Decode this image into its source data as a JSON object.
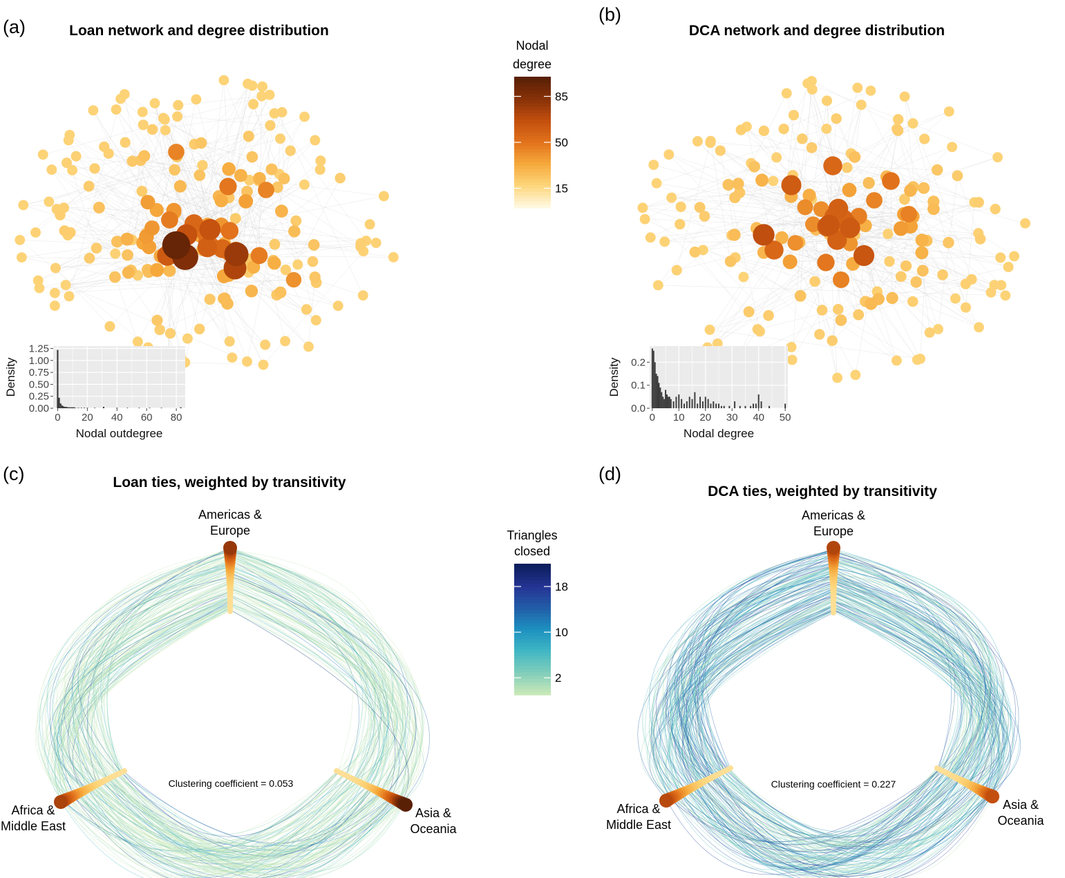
{
  "panels": {
    "a": {
      "label": "(a)",
      "title": "Loan network and degree distribution"
    },
    "b": {
      "label": "(b)",
      "title": "DCA network and degree distribution"
    },
    "c": {
      "label": "(c)",
      "title": "Loan ties, weighted by transitivity",
      "clustering": "Clustering coefficient = 0.053"
    },
    "d": {
      "label": "(d)",
      "title": "DCA ties, weighted by transitivity",
      "clustering": "Clustering coefficient = 0.227"
    }
  },
  "regions": {
    "top": [
      "Americas &",
      "Europe"
    ],
    "left": [
      "Africa &",
      "Middle East"
    ],
    "right": [
      "Asia &",
      "Oceania"
    ]
  },
  "legend_degree": {
    "title": [
      "Nodal",
      "degree"
    ],
    "ticks": [
      "85",
      "50",
      "15"
    ],
    "tick_values": [
      85,
      50,
      15
    ],
    "range": [
      0,
      100
    ],
    "colors": [
      "#fff8e0",
      "#fdd57a",
      "#f6a93c",
      "#e2731c",
      "#c4500e",
      "#8a3209",
      "#5a2005"
    ]
  },
  "legend_triangles": {
    "title": [
      "Triangles",
      "closed"
    ],
    "ticks": [
      "18",
      "10",
      "2"
    ],
    "tick_values": [
      18,
      10,
      2
    ],
    "range": [
      -1,
      22
    ],
    "colors": [
      "#c8e8b8",
      "#7fcdbb",
      "#41b6c4",
      "#1d91c0",
      "#225ea8",
      "#253494",
      "#0c1e5e"
    ]
  },
  "colors": {
    "edge": "#d4d4d4",
    "node_low": "#fde39a",
    "node_high": "#5a2005",
    "ties_low": "#b8e0b0",
    "ties_high": "#2c4fa0",
    "panel_bg": "#ebebeb",
    "bar": "#3a3a3a"
  },
  "chart_data": [
    {
      "type": "bar",
      "panel": "a-inset",
      "xlabel": "Nodal outdegree",
      "ylabel": "Density",
      "xlim": [
        -3,
        86
      ],
      "ylim": [
        0,
        1.3
      ],
      "xticks": [
        0,
        20,
        40,
        60,
        80
      ],
      "yticks": [
        0.0,
        0.25,
        0.5,
        0.75,
        1.0,
        1.25
      ],
      "ytick_labels": [
        "0.00",
        "0.25",
        "0.50",
        "0.75",
        "1.00",
        "1.25"
      ],
      "bin_width": 1,
      "x": [
        0,
        1,
        2,
        3,
        4,
        5,
        6,
        7,
        8,
        9,
        10,
        11,
        12,
        14,
        16,
        18,
        20,
        25,
        31,
        40,
        47,
        55,
        62,
        70,
        83
      ],
      "values": [
        1.22,
        0.22,
        0.1,
        0.06,
        0.04,
        0.03,
        0.03,
        0.02,
        0.02,
        0.02,
        0.02,
        0.02,
        0.01,
        0.01,
        0.01,
        0.01,
        0.01,
        0.01,
        0.03,
        0.01,
        0.01,
        0.01,
        0.01,
        0.01,
        0.02
      ]
    },
    {
      "type": "bar",
      "panel": "b-inset",
      "xlabel": "Nodal degree",
      "ylabel": "Density",
      "xlim": [
        -1,
        51
      ],
      "ylim": [
        0,
        0.27
      ],
      "xticks": [
        0,
        10,
        20,
        30,
        40,
        50
      ],
      "yticks": [
        0.0,
        0.1,
        0.2
      ],
      "ytick_labels": [
        "0.0",
        "0.1",
        "0.2"
      ],
      "bin_width": 0.5,
      "x": [
        0,
        0.5,
        1,
        1.5,
        2,
        2.5,
        3,
        3.5,
        4,
        4.5,
        5,
        5.5,
        6,
        6.5,
        7,
        8,
        9,
        10,
        11,
        12,
        13,
        14,
        15,
        16,
        17,
        18,
        19,
        20,
        21,
        22,
        23,
        24,
        25,
        26,
        27,
        29,
        31,
        33,
        35,
        37,
        38,
        39,
        40,
        41,
        44,
        50
      ],
      "values": [
        0.26,
        0.25,
        0.2,
        0.15,
        0.14,
        0.11,
        0.09,
        0.07,
        0.05,
        0.04,
        0.08,
        0.06,
        0.05,
        0.05,
        0.04,
        0.03,
        0.05,
        0.06,
        0.04,
        0.02,
        0.03,
        0.05,
        0.04,
        0.07,
        0.02,
        0.05,
        0.03,
        0.05,
        0.04,
        0.02,
        0.03,
        0.02,
        0.02,
        0.01,
        0.01,
        0.01,
        0.03,
        0.01,
        0.01,
        0.01,
        0.02,
        0.02,
        0.06,
        0.03,
        0.01,
        0.02
      ]
    }
  ]
}
